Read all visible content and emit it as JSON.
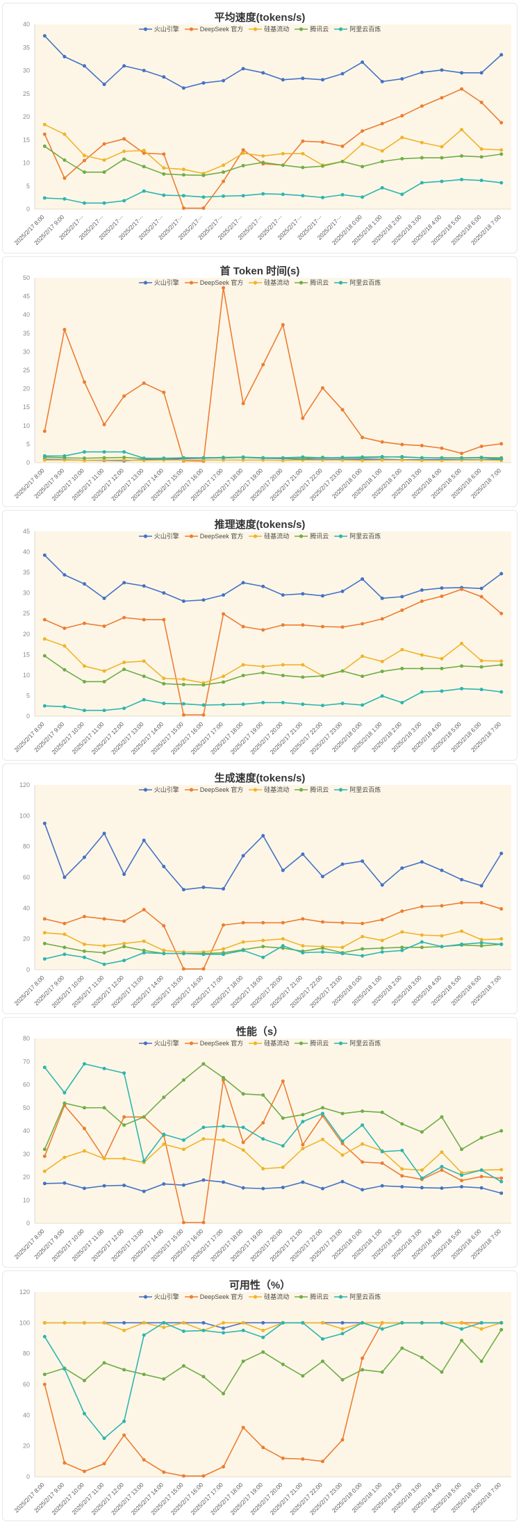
{
  "plot_bg": "#fdf6e7",
  "legend": {
    "items": [
      "火山引擎",
      "DeepSeek 官方",
      "硅基流动",
      "腾讯云",
      "阿里云百炼"
    ],
    "colors": [
      "#4472c4",
      "#ed7d31",
      "#f0b429",
      "#70ad47",
      "#2cb5ae"
    ]
  },
  "x_labels": [
    "2025/2/17 8:00",
    "2025/2/17 9:00",
    "2025/2/17 10:00",
    "2025/2/17 11:00",
    "2025/2/17 12:00",
    "2025/2/17 13:00",
    "2025/2/17 14:00",
    "2025/2/17 15:00",
    "2025/2/17 16:00",
    "2025/2/17 17:00",
    "2025/2/17 18:00",
    "2025/2/17 19:00",
    "2025/2/17 20:00",
    "2025/2/17 21:00",
    "2025/2/17 22:00",
    "2025/2/17 23:00",
    "2025/2/18 0:00",
    "2025/2/18 1:00",
    "2025/2/18 2:00",
    "2025/2/18 3:00",
    "2025/2/18 4:00",
    "2025/2/18 5:00",
    "2025/2/18 6:00",
    "2025/2/18 7:00"
  ],
  "x_labels_truncated": [
    "2025/2/17 8:00",
    "2025/2/17 9:00",
    "2025/2/17⋯",
    "2025/2/17⋯",
    "2025/2/17⋯",
    "2025/2/17⋯",
    "2025/2/17⋯",
    "2025/2/17⋯",
    "2025/2/17⋯",
    "2025/2/17⋯",
    "2025/2/17⋯",
    "2025/2/17⋯",
    "2025/2/17⋯",
    "2025/2/17⋯",
    "2025/2/17⋯",
    "2025/2/17⋯",
    "2025/2/18 0:00",
    "2025/2/18 1:00",
    "2025/2/18 2:00",
    "2025/2/18 3:00",
    "2025/2/18 4:00",
    "2025/2/18 5:00",
    "2025/2/18 6:00",
    "2025/2/18 7:00"
  ],
  "chart_data": [
    {
      "type": "line",
      "title": "平均速度(tokens/s)",
      "ylim": [
        0,
        40
      ],
      "ystep": 5,
      "x_axis": "x_labels_truncated",
      "legend_position": "top-center",
      "grid": false,
      "series": [
        {
          "name": "火山引擎",
          "values": [
            37.5,
            33,
            31,
            27,
            31,
            30,
            28.6,
            26.2,
            27.3,
            27.8,
            30.4,
            29.5,
            28,
            28.3,
            28,
            29.3,
            31.8,
            27.6,
            28.2,
            29.6,
            30.1,
            29.5,
            29.5,
            33.4
          ]
        },
        {
          "name": "DeepSeek 官方",
          "values": [
            16.2,
            6.7,
            10.5,
            14.1,
            15.2,
            12.1,
            11.9,
            0.2,
            0.2,
            6,
            12.8,
            9.8,
            9.5,
            14.7,
            14.5,
            13.6,
            16.9,
            18.5,
            20.2,
            22.3,
            24.1,
            26,
            23.1,
            18.7
          ]
        },
        {
          "name": "硅基流动",
          "values": [
            18.3,
            16.2,
            11.6,
            10.6,
            12.5,
            12.7,
            8.9,
            8.6,
            7.7,
            9.5,
            12.1,
            11.5,
            12,
            12,
            9.5,
            10.3,
            14.1,
            12.6,
            15.5,
            14.4,
            13.5,
            17.2,
            13,
            12.8
          ]
        },
        {
          "name": "腾讯云",
          "values": [
            13.6,
            10.6,
            8,
            8,
            10.8,
            9.2,
            7.6,
            7.4,
            7.3,
            8,
            9.4,
            10.1,
            9.5,
            9,
            9.3,
            10.3,
            9.2,
            10.3,
            10.9,
            11.1,
            11.1,
            11.5,
            11.3,
            11.9
          ]
        },
        {
          "name": "阿里云百炼",
          "values": [
            2.4,
            2.2,
            1.3,
            1.3,
            1.8,
            3.9,
            3,
            2.9,
            2.6,
            2.8,
            2.9,
            3.3,
            3.2,
            2.9,
            2.5,
            3.1,
            2.6,
            4.6,
            3.2,
            5.7,
            6,
            6.4,
            6.2,
            5.7
          ]
        }
      ]
    },
    {
      "type": "line",
      "title": "首 Token 时间(s)",
      "ylim": [
        0,
        50
      ],
      "ystep": 5,
      "x_axis": "x_labels",
      "legend_position": "top-center",
      "grid": false,
      "series": [
        {
          "name": "火山引擎",
          "values": [
            0.9,
            0.8,
            0.6,
            0.6,
            0.5,
            0.8,
            0.8,
            1.1,
            1.2,
            1.3,
            1.4,
            1.2,
            1.1,
            0.9,
            0.9,
            0.9,
            0.9,
            0.9,
            0.8,
            0.8,
            0.8,
            0.8,
            0.8,
            0.9
          ]
        },
        {
          "name": "DeepSeek 官方",
          "values": [
            8.5,
            36,
            21.8,
            10.3,
            18,
            21.5,
            19,
            0.5,
            0.4,
            47.3,
            16,
            26.5,
            37.3,
            12,
            20.2,
            14.3,
            6.8,
            5.6,
            4.9,
            4.6,
            3.9,
            2.5,
            4.4,
            5.1
          ]
        },
        {
          "name": "硅基流动",
          "values": [
            0.7,
            0.7,
            0.6,
            0.7,
            0.7,
            0.6,
            0.7,
            0.7,
            0.7,
            0.7,
            0.7,
            0.7,
            0.6,
            0.7,
            0.7,
            0.7,
            0.6,
            0.7,
            0.7,
            0.6,
            0.6,
            0.7,
            0.7,
            0.6
          ]
        },
        {
          "name": "腾讯云",
          "values": [
            1.5,
            1.3,
            1.2,
            1.3,
            1.4,
            1.1,
            1.1,
            1.3,
            1.3,
            1.4,
            1.5,
            1.3,
            1.2,
            1.1,
            1.4,
            1.3,
            1.3,
            1.5,
            1.6,
            1.3,
            1.3,
            1.3,
            1.4,
            1.3
          ]
        },
        {
          "name": "阿里云百炼",
          "values": [
            1.8,
            1.8,
            2.9,
            2.9,
            2.9,
            1.2,
            1.2,
            1.3,
            1.3,
            1.3,
            1.4,
            1.3,
            1.3,
            1.5,
            1.3,
            1.4,
            1.5,
            1.6,
            1.5,
            1.3,
            1.2,
            1.2,
            1.3,
            1.0
          ]
        }
      ]
    },
    {
      "type": "line",
      "title": "推理速度(tokens/s)",
      "ylim": [
        0,
        45
      ],
      "ystep": 5,
      "x_axis": "x_labels",
      "legend_position": "top-center",
      "grid": false,
      "series": [
        {
          "name": "火山引擎",
          "values": [
            39.2,
            34.4,
            32.2,
            28.7,
            32.5,
            31.7,
            30,
            28,
            28.3,
            29.5,
            32.5,
            31.6,
            29.5,
            29.8,
            29.3,
            30.4,
            33.4,
            28.7,
            29.1,
            30.7,
            31.2,
            31.3,
            31.1,
            34.7
          ]
        },
        {
          "name": "DeepSeek 官方",
          "values": [
            23.5,
            21.4,
            22.6,
            21.9,
            24,
            23.5,
            23.5,
            0.3,
            0.3,
            24.9,
            21.8,
            21,
            22.2,
            22.2,
            21.8,
            21.7,
            22.5,
            23.7,
            25.8,
            28,
            29.2,
            30.9,
            29.1,
            25
          ]
        },
        {
          "name": "硅基流动",
          "values": [
            18.8,
            17.1,
            12.2,
            11,
            13.1,
            13.4,
            9.2,
            9,
            8.1,
            9.7,
            12.5,
            12.1,
            12.5,
            12.5,
            9.8,
            11,
            14.6,
            13.3,
            16.2,
            14.9,
            14,
            17.7,
            13.5,
            13.4
          ]
        },
        {
          "name": "腾讯云",
          "values": [
            14.7,
            11.3,
            8.4,
            8.4,
            11.4,
            9.7,
            7.9,
            7.7,
            7.6,
            8.3,
            9.9,
            10.6,
            9.9,
            9.5,
            9.8,
            11,
            9.7,
            10.9,
            11.6,
            11.6,
            11.6,
            12.2,
            12,
            12.5
          ]
        },
        {
          "name": "阿里云百炼",
          "values": [
            2.5,
            2.3,
            1.4,
            1.4,
            1.9,
            4,
            3.1,
            3,
            2.7,
            2.8,
            2.9,
            3.3,
            3.3,
            2.9,
            2.6,
            3.1,
            2.7,
            4.9,
            3.3,
            5.9,
            6.1,
            6.7,
            6.5,
            5.9
          ]
        }
      ]
    },
    {
      "type": "line",
      "title": "生成速度(tokens/s)",
      "ylim": [
        0,
        120
      ],
      "ystep": 20,
      "x_axis": "x_labels",
      "legend_position": "top-center",
      "grid": false,
      "series": [
        {
          "name": "火山引擎",
          "values": [
            95,
            60,
            73,
            88.5,
            62,
            84,
            67,
            52,
            53.5,
            52.5,
            74,
            87,
            64.5,
            75,
            60.5,
            68.5,
            70.5,
            55,
            66,
            70,
            64.5,
            58.5,
            54.5,
            75.5
          ]
        },
        {
          "name": "DeepSeek 官方",
          "values": [
            33,
            30,
            34.5,
            33,
            31.5,
            39,
            28.5,
            0.5,
            0.5,
            29,
            30.5,
            30.5,
            30.5,
            33,
            31,
            30.5,
            30,
            32.5,
            38,
            41,
            41.5,
            43.5,
            43.5,
            39.5
          ]
        },
        {
          "name": "硅基流动",
          "values": [
            24,
            23,
            16.5,
            15.5,
            17,
            18.5,
            12.5,
            11.5,
            11.5,
            13.5,
            18,
            19,
            20,
            15.5,
            15,
            14.5,
            21.5,
            19,
            24.5,
            22.5,
            22,
            25,
            19.5,
            20
          ]
        },
        {
          "name": "腾讯云",
          "values": [
            17,
            14.5,
            12,
            11,
            15,
            12.5,
            10.5,
            10.5,
            10.5,
            11,
            13,
            15,
            14,
            12,
            14,
            11,
            13.5,
            14,
            14.5,
            14.5,
            15,
            16,
            15.5,
            16.5
          ]
        },
        {
          "name": "阿里云百炼",
          "values": [
            7,
            10,
            8,
            3.5,
            6,
            11,
            10.5,
            10.5,
            10,
            10,
            12.5,
            8,
            15.5,
            11,
            11.5,
            10.5,
            9,
            11.5,
            12.5,
            18,
            15,
            16.5,
            17.5,
            16.5
          ]
        }
      ]
    },
    {
      "type": "line",
      "title": "性能（s）",
      "ylim": [
        0,
        80
      ],
      "ystep": 10,
      "x_axis": "x_labels",
      "legend_position": "top-center",
      "grid": false,
      "series": [
        {
          "name": "火山引擎",
          "values": [
            17.2,
            17.4,
            15.1,
            16.2,
            16.4,
            13.8,
            17,
            16.5,
            18.7,
            17.8,
            15.3,
            15,
            15.5,
            17.8,
            15,
            18,
            14.5,
            16.2,
            15.8,
            15.4,
            15.2,
            15.8,
            15.3,
            13
          ]
        },
        {
          "name": "DeepSeek 官方",
          "values": [
            29,
            51,
            41,
            28,
            46,
            46,
            38,
            0.3,
            0.3,
            62,
            35,
            43.5,
            61.5,
            34,
            46.5,
            34.5,
            26.5,
            26,
            20.5,
            19,
            23,
            18.5,
            20.2,
            19.5
          ]
        },
        {
          "name": "硅基流动",
          "values": [
            22.5,
            28.5,
            31.3,
            28,
            28,
            26.3,
            34.2,
            32,
            36.5,
            36,
            31.7,
            23.6,
            24.2,
            32.3,
            36.3,
            29.5,
            34.3,
            31.3,
            23.5,
            23,
            30.8,
            21.8,
            23,
            23.2
          ]
        },
        {
          "name": "腾讯云",
          "values": [
            32,
            52,
            50,
            50,
            42.5,
            46,
            54.5,
            62,
            69,
            63,
            56,
            55.5,
            45.5,
            47,
            50,
            47.5,
            48.5,
            48,
            43,
            39.5,
            46,
            32,
            37,
            40
          ]
        },
        {
          "name": "阿里云百炼",
          "values": [
            67.5,
            56.5,
            69,
            67,
            65,
            27,
            38.5,
            36,
            41.5,
            42,
            41.5,
            36.5,
            33.5,
            44,
            47.5,
            35.5,
            42.5,
            31,
            31.5,
            19.5,
            24.5,
            20.8,
            23,
            18
          ]
        }
      ]
    },
    {
      "type": "line",
      "title": "可用性（%）",
      "ylim": [
        0,
        120
      ],
      "ystep": 20,
      "x_axis": "x_labels",
      "legend_position": "top-center",
      "grid": false,
      "series": [
        {
          "name": "火山引擎",
          "values": [
            100,
            100,
            100,
            100,
            100,
            100,
            100,
            100,
            100,
            96.5,
            100,
            100,
            100,
            100,
            100,
            100,
            100,
            100,
            100,
            100,
            100,
            100,
            100,
            100
          ]
        },
        {
          "name": "DeepSeek 官方",
          "values": [
            60,
            9,
            3.5,
            8.5,
            27,
            11,
            3,
            0.5,
            0.5,
            6.5,
            32,
            19,
            12,
            11.5,
            10,
            24,
            77,
            100,
            100,
            100,
            100,
            100,
            100,
            100
          ]
        },
        {
          "name": "硅基流动",
          "values": [
            100,
            100,
            100,
            100,
            95,
            100,
            97,
            100,
            95,
            100,
            100,
            95,
            100,
            100,
            100,
            96,
            100,
            100,
            100,
            100,
            100,
            100,
            96,
            100
          ]
        },
        {
          "name": "腾讯云",
          "values": [
            66.5,
            70.5,
            62.5,
            74,
            69.5,
            66.5,
            63.5,
            72,
            65,
            54,
            75,
            81,
            73,
            65.5,
            75,
            63,
            69.5,
            68,
            83.5,
            77.5,
            68,
            88.5,
            75,
            95.5
          ]
        },
        {
          "name": "阿里云百炼",
          "values": [
            91,
            70,
            41,
            25,
            36,
            92,
            100,
            94.5,
            95,
            93.5,
            95,
            90.5,
            100,
            100,
            89.5,
            93,
            100,
            96,
            100,
            100,
            100,
            96,
            100,
            100
          ]
        }
      ]
    }
  ]
}
